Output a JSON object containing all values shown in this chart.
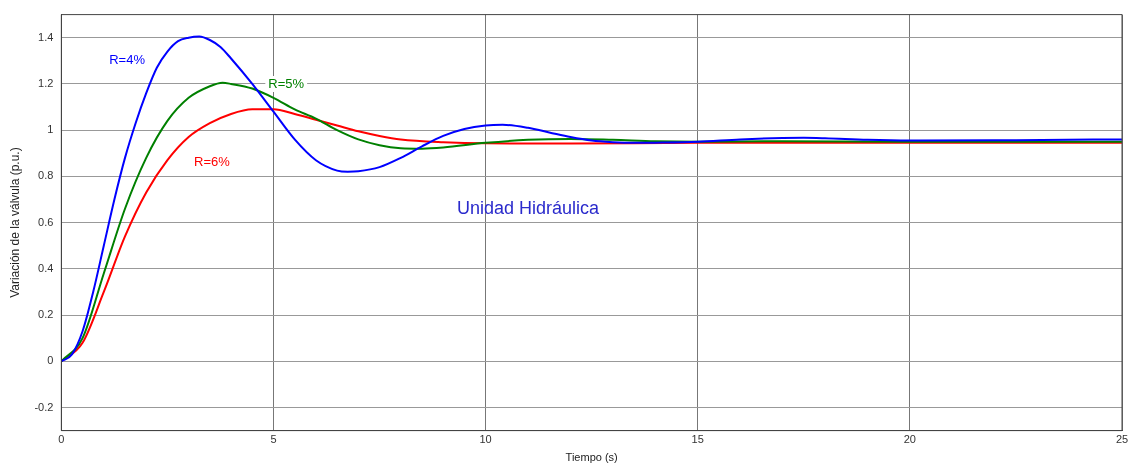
{
  "chart_data": {
    "type": "line",
    "xlabel": "Tiempo (s)",
    "ylabel": "Variación de la válvula (p.u.)",
    "annotations": [
      "Unidad Hidráulica"
    ],
    "xlim": [
      0,
      25
    ],
    "xticks": [
      0,
      5,
      10,
      15,
      20,
      25
    ],
    "ylim": [
      -0.3,
      1.5
    ],
    "yticks": [
      -0.2,
      0,
      0.2,
      0.4,
      0.6,
      0.8,
      1,
      1.2,
      1.4
    ],
    "grid": true,
    "legend": false,
    "marker": "none",
    "line_style": "solid",
    "series": [
      {
        "name": "R=4%",
        "color": "#0000ff",
        "x": [
          0,
          0.25,
          0.5,
          0.75,
          1,
          1.25,
          1.5,
          1.75,
          2,
          2.25,
          2.5,
          2.75,
          3,
          3.25,
          3.5,
          3.75,
          4,
          4.5,
          5,
          5.5,
          6,
          6.5,
          6.75,
          7,
          7.5,
          8,
          8.5,
          9,
          9.5,
          10,
          10.4,
          11,
          11.5,
          12,
          12.5,
          13,
          13.5,
          14,
          15,
          16,
          17,
          17.5,
          18,
          19,
          20,
          22,
          25
        ],
        "values": [
          0,
          0.03,
          0.13,
          0.3,
          0.5,
          0.7,
          0.88,
          1.03,
          1.16,
          1.27,
          1.34,
          1.385,
          1.4,
          1.405,
          1.39,
          1.36,
          1.31,
          1.2,
          1.08,
          0.96,
          0.87,
          0.825,
          0.82,
          0.822,
          0.84,
          0.88,
          0.93,
          0.975,
          1.005,
          1.02,
          1.023,
          1.01,
          0.99,
          0.97,
          0.955,
          0.948,
          0.945,
          0.946,
          0.95,
          0.96,
          0.966,
          0.967,
          0.965,
          0.958,
          0.955,
          0.956,
          0.96
        ]
      },
      {
        "name": "R=5%",
        "color": "#008000",
        "x": [
          0,
          0.5,
          1,
          1.5,
          2,
          2.5,
          3,
          3.5,
          3.8,
          4,
          4.5,
          5,
          5.5,
          6,
          6.5,
          7,
          7.5,
          8,
          8.5,
          9,
          10,
          11,
          12,
          13,
          14,
          15,
          17,
          20,
          25
        ],
        "values": [
          0,
          0.1,
          0.38,
          0.66,
          0.88,
          1.04,
          1.14,
          1.19,
          1.205,
          1.2,
          1.18,
          1.14,
          1.09,
          1.05,
          1.0,
          0.96,
          0.935,
          0.922,
          0.92,
          0.925,
          0.945,
          0.958,
          0.962,
          0.958,
          0.952,
          0.95,
          0.952,
          0.95,
          0.95
        ]
      },
      {
        "name": "R=6%",
        "color": "#ff0000",
        "x": [
          0,
          0.5,
          1,
          1.5,
          2,
          2.5,
          3,
          3.5,
          4,
          4.5,
          5,
          5.5,
          6,
          6.5,
          7,
          7.5,
          8,
          9,
          10,
          12,
          15,
          20,
          25
        ],
        "values": [
          0,
          0.08,
          0.3,
          0.54,
          0.73,
          0.87,
          0.97,
          1.03,
          1.07,
          1.09,
          1.09,
          1.07,
          1.045,
          1.02,
          0.995,
          0.975,
          0.96,
          0.948,
          0.943,
          0.942,
          0.945,
          0.945,
          0.945
        ]
      }
    ]
  }
}
